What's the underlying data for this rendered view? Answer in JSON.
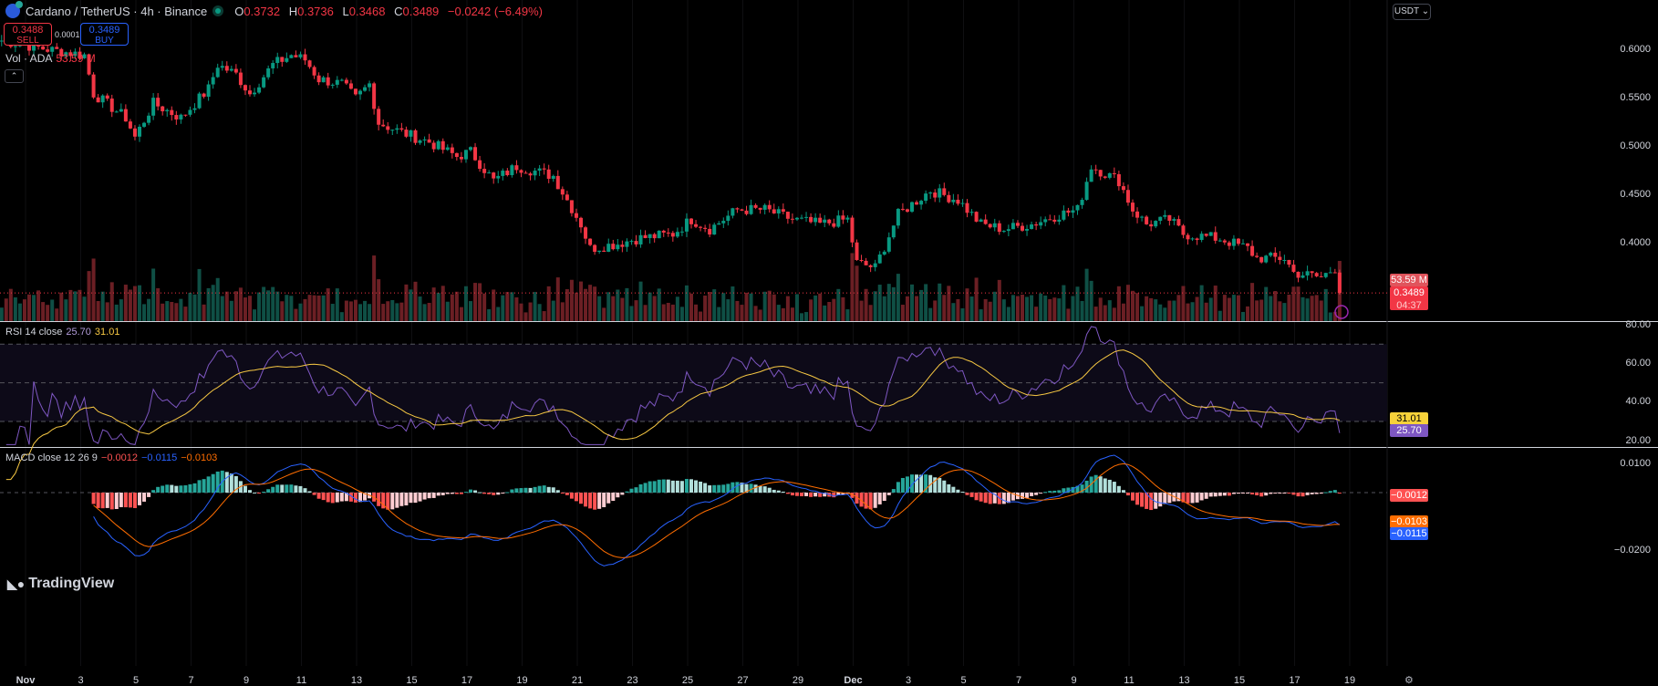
{
  "header": {
    "symbol": "Cardano / TetherUS · 4h · Binance",
    "open": "0.3732",
    "high": "0.3736",
    "low": "0.3468",
    "close": "0.3489",
    "change": "−0.0242 (−6.49%)",
    "labels": {
      "o": "O",
      "h": "H",
      "l": "L",
      "c": "C"
    }
  },
  "trade": {
    "sell_price": "0.3488",
    "sell_label": "SELL",
    "buy_price": "0.3489",
    "buy_label": "BUY",
    "spread": "0.0001"
  },
  "volume": {
    "label": "Vol · ADA",
    "value": "53.59 M"
  },
  "currency": "USDT",
  "collapse_icon": "⌃",
  "price_axis": [
    "0.6000",
    "0.5500",
    "0.5000",
    "0.4500",
    "0.4000"
  ],
  "price_tags": {
    "volume": "53.59 M",
    "last": "0.3489",
    "countdown": "04:37"
  },
  "rsi": {
    "label": "RSI 14 close",
    "rsi": "25.70",
    "ma": "31.01",
    "axis": [
      "80.00",
      "60.00",
      "40.00",
      "20.00"
    ]
  },
  "macd": {
    "label": "MACD close 12 26 9",
    "hist": "−0.0012",
    "macd": "−0.0115",
    "signal": "−0.0103",
    "axis": [
      "0.0100",
      "−0.0200"
    ]
  },
  "time_axis": [
    "Nov",
    "3",
    "5",
    "7",
    "9",
    "11",
    "13",
    "15",
    "17",
    "19",
    "21",
    "23",
    "25",
    "27",
    "29",
    "Dec",
    "3",
    "5",
    "7",
    "9",
    "11",
    "13",
    "15",
    "17",
    "19"
  ],
  "logo": "TradingView",
  "colors": {
    "up": "#089981",
    "down": "#f23645",
    "rsi": "#7e57c2",
    "rsi_ma": "#f7c843",
    "macd": "#2962ff",
    "signal": "#ff6d00"
  },
  "chart_data": {
    "type": "candlestick",
    "interval": "4h",
    "close_path": [
      [
        "10-31 00:00",
        0.61
      ],
      [
        "11-01 20:00",
        0.6
      ],
      [
        "11-03 00:00",
        0.595
      ],
      [
        "11-03 08:00",
        0.555
      ],
      [
        "11-04 12:00",
        0.53
      ],
      [
        "11-04 20:00",
        0.51
      ],
      [
        "11-05 12:00",
        0.545
      ],
      [
        "11-06 12:00",
        0.53
      ],
      [
        "11-07 12:00",
        0.56
      ],
      [
        "11-07 20:00",
        0.585
      ],
      [
        "11-08 12:00",
        0.575
      ],
      [
        "11-09 00:00",
        0.555
      ],
      [
        "11-09 20:00",
        0.585
      ],
      [
        "11-10 12:00",
        0.595
      ],
      [
        "11-11 00:00",
        0.59
      ],
      [
        "11-11 12:00",
        0.57
      ],
      [
        "11-12 08:00",
        0.565
      ],
      [
        "11-12 20:00",
        0.55
      ],
      [
        "11-13 08:00",
        0.565
      ],
      [
        "11-13 16:00",
        0.525
      ],
      [
        "11-14 12:00",
        0.515
      ],
      [
        "11-15 12:00",
        0.505
      ],
      [
        "11-16 12:00",
        0.49
      ],
      [
        "11-17 00:00",
        0.495
      ],
      [
        "11-17 20:00",
        0.465
      ],
      [
        "11-18 16:00",
        0.48
      ],
      [
        "11-19 08:00",
        0.475
      ],
      [
        "11-20 00:00",
        0.47
      ],
      [
        "11-20 12:00",
        0.445
      ],
      [
        "11-21 00:00",
        0.42
      ],
      [
        "11-21 08:00",
        0.395
      ],
      [
        "11-22 08:00",
        0.4
      ],
      [
        "11-23 00:00",
        0.405
      ],
      [
        "11-24 08:00",
        0.41
      ],
      [
        "11-25 00:00",
        0.425
      ],
      [
        "11-25 16:00",
        0.415
      ],
      [
        "11-26 16:00",
        0.435
      ],
      [
        "11-27 16:00",
        0.435
      ],
      [
        "11-28 16:00",
        0.425
      ],
      [
        "11-29 16:00",
        0.42
      ],
      [
        "11-30 16:00",
        0.425
      ],
      [
        "12-01 00:00",
        0.38
      ],
      [
        "12-01 16:00",
        0.375
      ],
      [
        "12-02 12:00",
        0.43
      ],
      [
        "12-03 16:00",
        0.455
      ],
      [
        "12-04 16:00",
        0.445
      ],
      [
        "12-05 12:00",
        0.42
      ],
      [
        "12-06 08:00",
        0.415
      ],
      [
        "12-07 08:00",
        0.42
      ],
      [
        "12-08 08:00",
        0.43
      ],
      [
        "12-09 00:00",
        0.435
      ],
      [
        "12-09 12:00",
        0.48
      ],
      [
        "12-10 12:00",
        0.465
      ],
      [
        "12-11 00:00",
        0.435
      ],
      [
        "12-11 12:00",
        0.42
      ],
      [
        "12-12 08:00",
        0.425
      ],
      [
        "12-12 20:00",
        0.41
      ],
      [
        "12-14 04:00",
        0.405
      ],
      [
        "12-15 04:00",
        0.395
      ],
      [
        "12-15 12:00",
        0.385
      ],
      [
        "12-16 12:00",
        0.385
      ],
      [
        "12-16 20:00",
        0.37
      ],
      [
        "12-17 20:00",
        0.365
      ],
      [
        "12-18 08:00",
        0.375
      ],
      [
        "12-18 12:00",
        0.3489
      ]
    ],
    "price_range": [
      0.335,
      0.625
    ],
    "rsi_range": [
      15,
      85
    ],
    "rsi_bands": [
      70,
      50,
      30
    ],
    "macd_range": [
      -0.024,
      0.0145
    ]
  }
}
